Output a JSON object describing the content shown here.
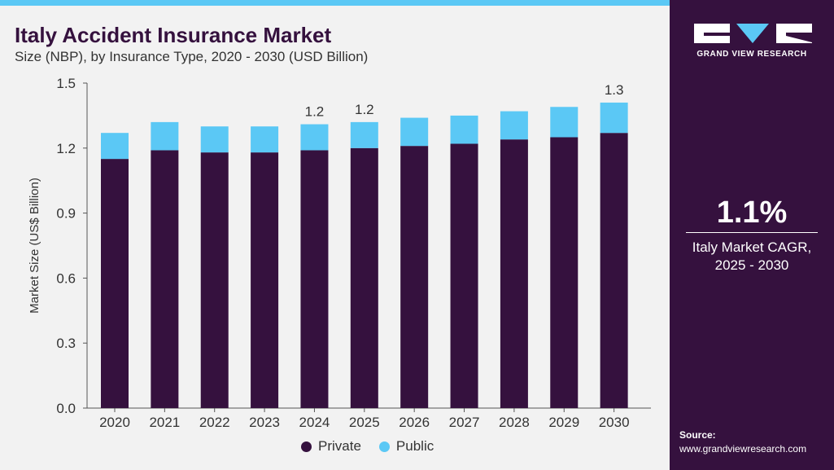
{
  "header": {
    "title": "Italy Accident Insurance Market",
    "subtitle": "Size (NBP), by Insurance Type, 2020 - 2030 (USD Billion)"
  },
  "chart_data": {
    "type": "bar",
    "stacked": true,
    "title": "Italy Accident Insurance Market",
    "subtitle": "Size (NBP), by Insurance Type, 2020 - 2030 (USD Billion)",
    "xlabel": "",
    "ylabel": "Market Size (US$ Billion)",
    "ylim": [
      0,
      1.5
    ],
    "yticks": [
      "0.0",
      "0.3",
      "0.6",
      "0.9",
      "1.2",
      "1.5"
    ],
    "grid": false,
    "legend_position": "bottom",
    "categories": [
      "2020",
      "2021",
      "2022",
      "2023",
      "2024",
      "2025",
      "2026",
      "2027",
      "2028",
      "2029",
      "2030"
    ],
    "series": [
      {
        "name": "Private",
        "color": "#35113e",
        "values": [
          1.15,
          1.19,
          1.18,
          1.18,
          1.19,
          1.2,
          1.21,
          1.22,
          1.24,
          1.25,
          1.27
        ]
      },
      {
        "name": "Public",
        "color": "#5bc8f5",
        "values": [
          0.12,
          0.13,
          0.12,
          0.12,
          0.12,
          0.12,
          0.13,
          0.13,
          0.13,
          0.14,
          0.14
        ]
      }
    ],
    "data_labels": [
      {
        "category": "2024",
        "label": "1.2"
      },
      {
        "category": "2025",
        "label": "1.2"
      },
      {
        "category": "2030",
        "label": "1.3"
      }
    ]
  },
  "legend": {
    "items": [
      {
        "label": "Private",
        "color": "#35113e"
      },
      {
        "label": "Public",
        "color": "#5bc8f5"
      }
    ]
  },
  "sidebar": {
    "logo_text": "GRAND VIEW RESEARCH",
    "cagr_value": "1.1%",
    "cagr_label_line1": "Italy Market CAGR,",
    "cagr_label_line2": "2025 - 2030",
    "source_label": "Source:",
    "source_url": "www.grandviewresearch.com"
  },
  "colors": {
    "brand_dark": "#35113e",
    "accent_blue": "#5bc8f5",
    "background": "#f2f2f2"
  }
}
